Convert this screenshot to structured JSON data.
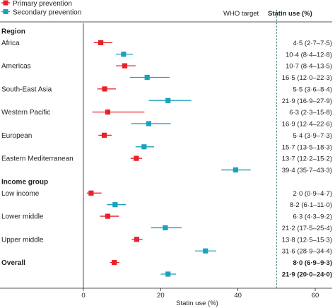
{
  "legend": {
    "primary_label": "Primary prevention",
    "secondary_label": "Secondary prevention"
  },
  "header": {
    "who_target_label": "WHO target",
    "statin_use_label": "Statin use (%)"
  },
  "colors": {
    "primary": "#e8212a",
    "secondary": "#1aa1bd",
    "text": "#231f20",
    "rule": "#231f20"
  },
  "chart_data": {
    "type": "forest",
    "xlabel": "Statin use (%)",
    "xlim": [
      0,
      60
    ],
    "xticks": [
      0,
      20,
      40,
      60
    ],
    "reference_line": {
      "label": "WHO target",
      "x": 50,
      "style": "dashed"
    },
    "series": [
      {
        "name": "Primary prevention",
        "color": "#e8212a"
      },
      {
        "name": "Secondary prevention",
        "color": "#1aa1bd"
      }
    ],
    "rows": [
      {
        "kind": "header",
        "label": "Region"
      },
      {
        "kind": "data",
        "label": "Africa",
        "series": "primary",
        "est": 4.5,
        "lo": 2.7,
        "hi": 7.5,
        "text": "4·5 (2·7–7·5)"
      },
      {
        "kind": "data",
        "label": "",
        "series": "secondary",
        "est": 10.4,
        "lo": 8.4,
        "hi": 12.8,
        "text": "10·4 (8·4–12·8)"
      },
      {
        "kind": "data",
        "label": "Americas",
        "series": "primary",
        "est": 10.7,
        "lo": 8.4,
        "hi": 13.5,
        "text": "10·7 (8·4–13·5)"
      },
      {
        "kind": "data",
        "label": "",
        "series": "secondary",
        "est": 16.5,
        "lo": 12.0,
        "hi": 22.3,
        "text": "16·5 (12·0–22·3)"
      },
      {
        "kind": "data",
        "label": "South-East Asia",
        "series": "primary",
        "est": 5.5,
        "lo": 3.6,
        "hi": 8.4,
        "text": "5·5 (3·6–8·4)"
      },
      {
        "kind": "data",
        "label": "",
        "series": "secondary",
        "est": 21.9,
        "lo": 16.9,
        "hi": 27.9,
        "text": "21·9 (16·9–27·9)"
      },
      {
        "kind": "data",
        "label": "Western Pacific",
        "series": "primary",
        "est": 6.3,
        "lo": 2.3,
        "hi": 15.8,
        "text": "6·3 (2·3–15·8)"
      },
      {
        "kind": "data",
        "label": "",
        "series": "secondary",
        "est": 16.9,
        "lo": 12.4,
        "hi": 22.6,
        "text": "16·9 (12·4–22·6)"
      },
      {
        "kind": "data",
        "label": "European",
        "series": "primary",
        "est": 5.4,
        "lo": 3.9,
        "hi": 7.3,
        "text": "5·4 (3·9–7·3)"
      },
      {
        "kind": "data",
        "label": "",
        "series": "secondary",
        "est": 15.7,
        "lo": 13.5,
        "hi": 18.3,
        "text": "15·7 (13·5–18·3)"
      },
      {
        "kind": "data",
        "label": "Eastern Mediterranean",
        "series": "primary",
        "est": 13.7,
        "lo": 12.2,
        "hi": 15.2,
        "text": "13·7 (12·2–15·2)"
      },
      {
        "kind": "data",
        "label": "",
        "series": "secondary",
        "est": 39.4,
        "lo": 35.7,
        "hi": 43.3,
        "text": "39·4 (35·7–43·3)"
      },
      {
        "kind": "header",
        "label": "Income group"
      },
      {
        "kind": "data",
        "label": "Low income",
        "series": "primary",
        "est": 2.0,
        "lo": 0.9,
        "hi": 4.7,
        "text": "2·0 (0·9–4·7)"
      },
      {
        "kind": "data",
        "label": "",
        "series": "secondary",
        "est": 8.2,
        "lo": 6.1,
        "hi": 11.0,
        "text": "8·2 (6·1–11·0)"
      },
      {
        "kind": "data",
        "label": "Lower middle",
        "series": "primary",
        "est": 6.3,
        "lo": 4.3,
        "hi": 9.2,
        "text": "6·3 (4·3–9·2)"
      },
      {
        "kind": "data",
        "label": "",
        "series": "secondary",
        "est": 21.2,
        "lo": 17.5,
        "hi": 25.4,
        "text": "21·2 (17·5–25·4)"
      },
      {
        "kind": "data",
        "label": "Upper middle",
        "series": "primary",
        "est": 13.8,
        "lo": 12.5,
        "hi": 15.3,
        "text": "13·8 (12·5–15·3)"
      },
      {
        "kind": "data",
        "label": "",
        "series": "secondary",
        "est": 31.6,
        "lo": 28.9,
        "hi": 34.4,
        "text": "31·6 (28·9–34·4)"
      },
      {
        "kind": "data",
        "label": "Overall",
        "bold": true,
        "series": "primary",
        "est": 8.0,
        "lo": 6.9,
        "hi": 9.3,
        "text": "8·0 (6·9–9·3)"
      },
      {
        "kind": "data",
        "label": "",
        "bold": true,
        "series": "secondary",
        "est": 21.9,
        "lo": 20.0,
        "hi": 24.0,
        "text": "21·9 (20·0–24·0)"
      }
    ]
  }
}
